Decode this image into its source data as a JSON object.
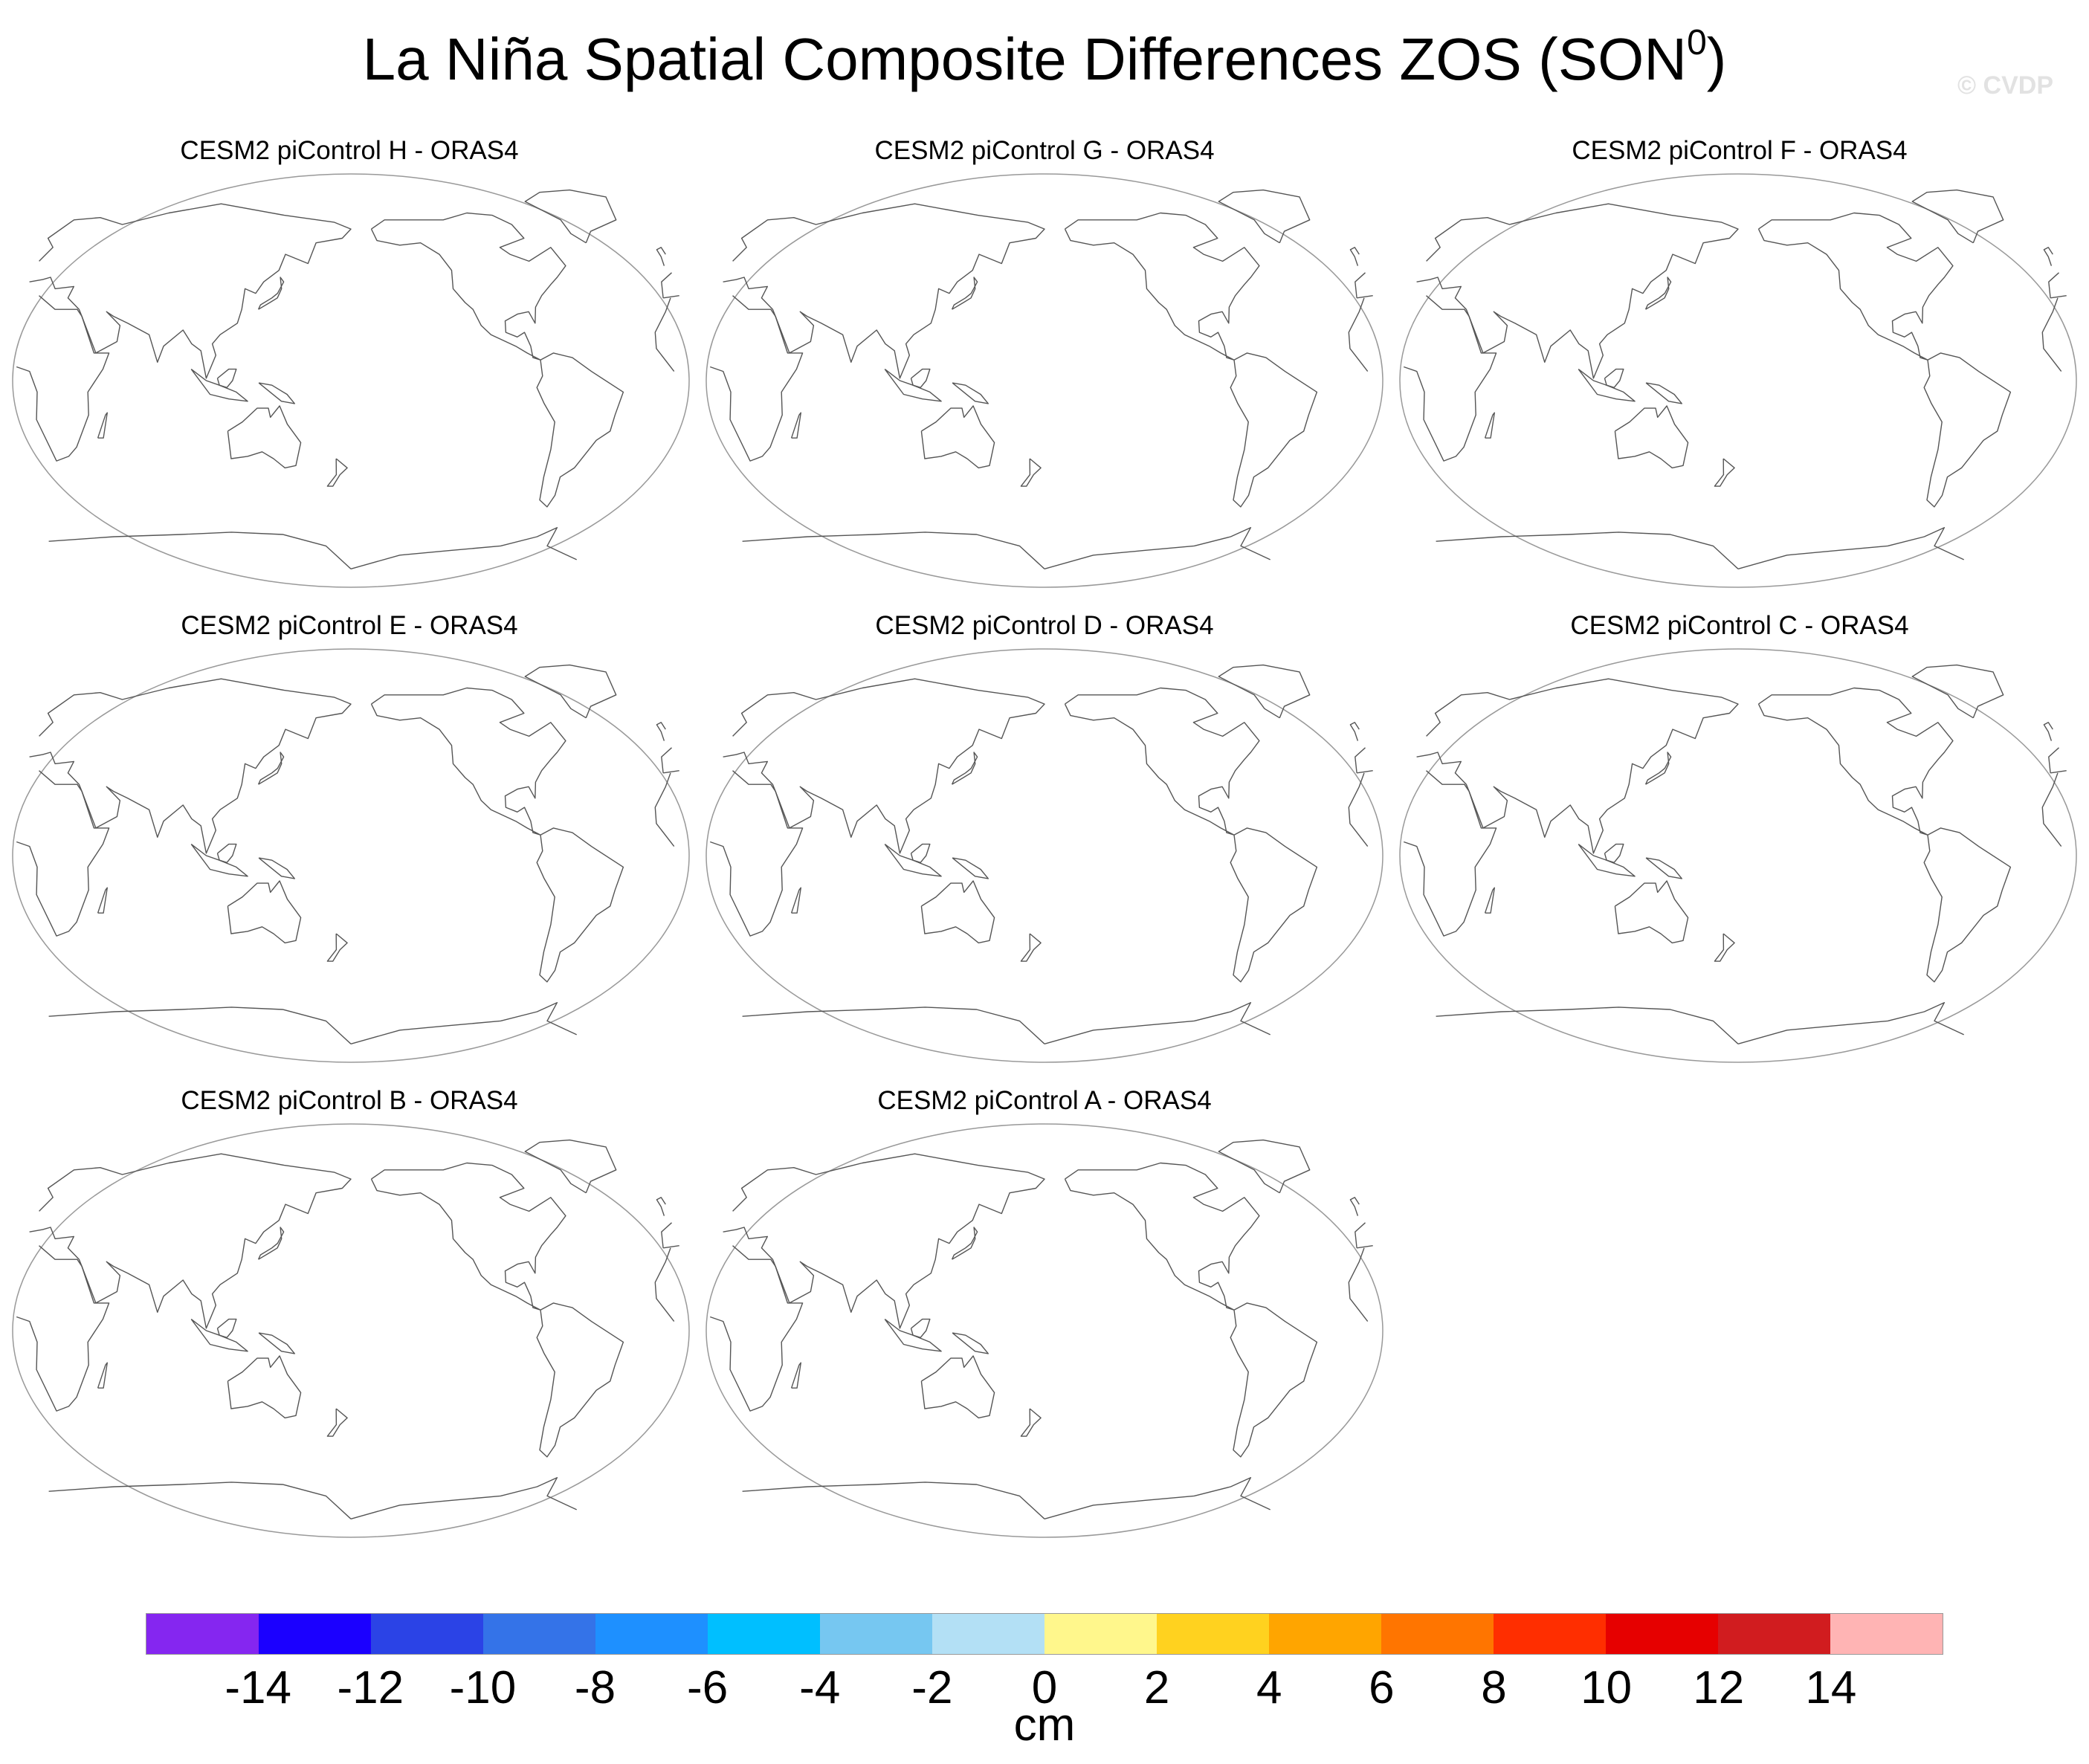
{
  "title": {
    "main": "La Niña Spatial Composite Differences ZOS (SON",
    "superscript": "0",
    "close": ")"
  },
  "watermark": "© CVDP",
  "panels": [
    {
      "label": "CESM2 piControl H - ORAS4"
    },
    {
      "label": "CESM2 piControl G - ORAS4"
    },
    {
      "label": "CESM2 piControl F - ORAS4"
    },
    {
      "label": "CESM2 piControl E - ORAS4"
    },
    {
      "label": "CESM2 piControl D - ORAS4"
    },
    {
      "label": "CESM2 piControl C - ORAS4"
    },
    {
      "label": "CESM2 piControl B - ORAS4"
    },
    {
      "label": "CESM2 piControl A - ORAS4"
    }
  ],
  "colorbar": {
    "colors": [
      "#8526f0",
      "#1b00ff",
      "#2b43e6",
      "#3473e8",
      "#1e90ff",
      "#00bfff",
      "#76c7f1",
      "#b3e0f5",
      "#fff78c",
      "#ffd21f",
      "#ffa500",
      "#ff7500",
      "#ff2e00",
      "#e60000",
      "#d11c1f",
      "#ffb4b4"
    ],
    "ticks": [
      "-14",
      "-12",
      "-10",
      "-8",
      "-6",
      "-4",
      "-2",
      "0",
      "2",
      "4",
      "6",
      "8",
      "10",
      "12",
      "14"
    ],
    "units": "cm"
  }
}
